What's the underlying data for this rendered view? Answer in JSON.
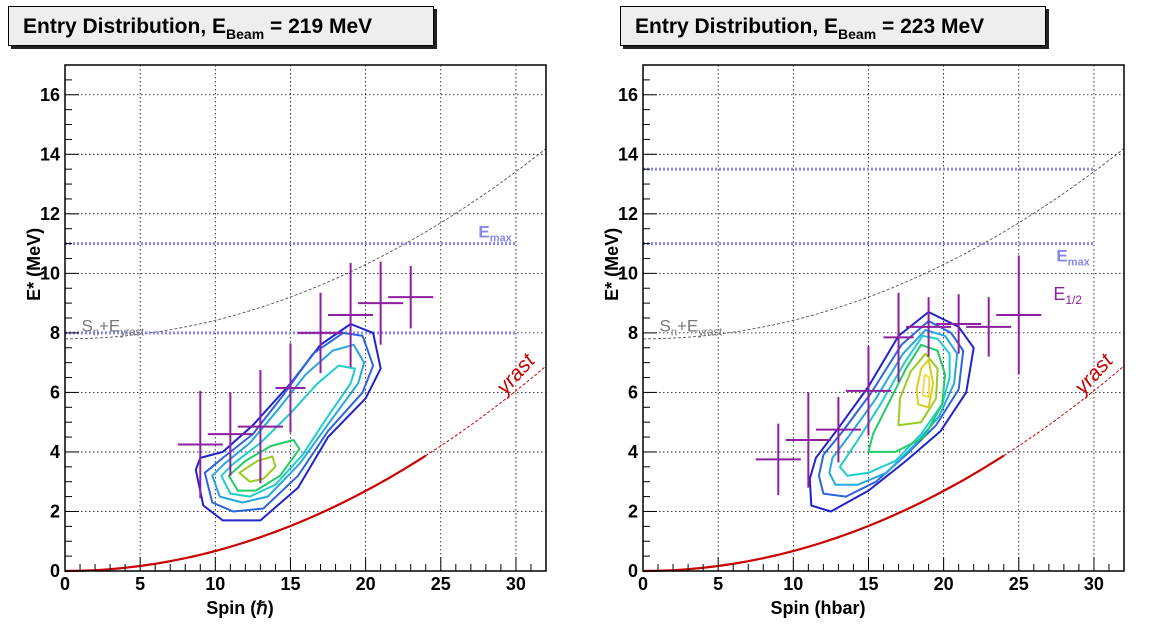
{
  "chart_data": [
    {
      "type": "contour",
      "title_prefix": "Entry Distribution, E",
      "title_sub": "Beam",
      "title_suffix": " = 219 MeV",
      "xlabel": "Spin (ℏ)",
      "ylabel": "E* (MeV)",
      "xlim": [
        0,
        32
      ],
      "ylim": [
        0,
        17
      ],
      "xticks": [
        "0",
        "5",
        "10",
        "15",
        "20",
        "25",
        "30"
      ],
      "yticks": [
        "0",
        "2",
        "4",
        "6",
        "8",
        "10",
        "12",
        "14",
        "16"
      ],
      "grid": true,
      "emax_label": "E",
      "emax_sub": "max",
      "sn_label": "S",
      "sn_sub1": "n",
      "sn_mid": "+E",
      "sn_sub2": "yrast",
      "yrast_label": "yrast",
      "half_label": "",
      "half_sub": "",
      "emax_lines": [
        8.0,
        11.0
      ],
      "entry_points": [
        {
          "x": 9,
          "y": 4.25,
          "xerr": 1.5,
          "yerr": 1.8
        },
        {
          "x": 11,
          "y": 4.6,
          "xerr": 1.5,
          "yerr": 1.4
        },
        {
          "x": 13,
          "y": 4.85,
          "xerr": 1.5,
          "yerr": 1.9
        },
        {
          "x": 15,
          "y": 6.15,
          "xerr": 1.0,
          "yerr": 1.5
        },
        {
          "x": 17,
          "y": 8.0,
          "xerr": 1.5,
          "yerr": 1.35
        },
        {
          "x": 19,
          "y": 8.6,
          "xerr": 1.5,
          "yerr": 1.75
        },
        {
          "x": 21,
          "y": 9.0,
          "xerr": 1.5,
          "yerr": 1.4
        },
        {
          "x": 23,
          "y": 9.2,
          "xerr": 1.5,
          "yerr": 1.05
        }
      ],
      "contours": [
        {
          "level": 1,
          "color": "#2222cc",
          "points": [
            [
              8.7,
              3.4
            ],
            [
              9.2,
              2.2
            ],
            [
              10.5,
              1.7
            ],
            [
              13.0,
              1.7
            ],
            [
              15.5,
              2.8
            ],
            [
              17.5,
              4.5
            ],
            [
              20.0,
              5.8
            ],
            [
              21.0,
              6.8
            ],
            [
              20.5,
              8.0
            ],
            [
              19.0,
              8.3
            ],
            [
              17.0,
              7.6
            ],
            [
              15.0,
              6.3
            ],
            [
              12.5,
              4.9
            ],
            [
              10.5,
              4.0
            ],
            [
              9.0,
              3.8
            ]
          ]
        },
        {
          "level": 2,
          "color": "#2d66dd",
          "points": [
            [
              9.3,
              3.3
            ],
            [
              9.8,
              2.3
            ],
            [
              11.2,
              2.0
            ],
            [
              13.2,
              2.1
            ],
            [
              15.5,
              3.2
            ],
            [
              17.5,
              4.7
            ],
            [
              19.8,
              6.0
            ],
            [
              20.5,
              6.9
            ],
            [
              19.8,
              7.9
            ],
            [
              18.5,
              8.0
            ],
            [
              16.5,
              7.3
            ],
            [
              14.5,
              5.9
            ],
            [
              12.5,
              4.6
            ],
            [
              10.5,
              3.8
            ]
          ]
        },
        {
          "level": 3,
          "color": "#25a8dd",
          "points": [
            [
              9.8,
              3.2
            ],
            [
              10.3,
              2.5
            ],
            [
              11.8,
              2.3
            ],
            [
              13.5,
              2.5
            ],
            [
              15.6,
              3.6
            ],
            [
              17.6,
              5.0
            ],
            [
              19.5,
              6.3
            ],
            [
              19.9,
              7.0
            ],
            [
              19.2,
              7.6
            ],
            [
              17.8,
              7.4
            ],
            [
              16.0,
              6.6
            ],
            [
              14.3,
              5.5
            ],
            [
              12.3,
              4.3
            ],
            [
              10.6,
              3.6
            ]
          ]
        },
        {
          "level": 4,
          "color": "#20cccc",
          "points": [
            [
              10.4,
              3.2
            ],
            [
              11.0,
              2.6
            ],
            [
              12.3,
              2.5
            ],
            [
              14.0,
              2.9
            ],
            [
              15.8,
              3.9
            ],
            [
              17.5,
              5.2
            ],
            [
              19.0,
              6.3
            ],
            [
              19.3,
              6.8
            ],
            [
              18.2,
              6.9
            ],
            [
              16.8,
              6.3
            ],
            [
              15.0,
              5.3
            ],
            [
              13.0,
              4.3
            ],
            [
              11.2,
              3.6
            ]
          ]
        },
        {
          "level": 5,
          "color": "#22cc66",
          "points": [
            [
              10.9,
              3.2
            ],
            [
              11.5,
              2.7
            ],
            [
              12.7,
              2.7
            ],
            [
              14.3,
              3.2
            ],
            [
              15.6,
              4.1
            ],
            [
              15.2,
              4.4
            ],
            [
              13.7,
              4.2
            ],
            [
              12.0,
              3.7
            ]
          ]
        },
        {
          "level": 6,
          "color": "#99cc22",
          "points": [
            [
              11.6,
              3.3
            ],
            [
              12.3,
              3.0
            ],
            [
              13.2,
              3.1
            ],
            [
              14.0,
              3.5
            ],
            [
              13.8,
              3.85
            ],
            [
              12.8,
              3.7
            ]
          ]
        }
      ]
    },
    {
      "type": "contour",
      "title_prefix": "Entry Distribution, E",
      "title_sub": "Beam",
      "title_suffix": " = 223 MeV",
      "xlabel": "Spin (hbar)",
      "ylabel": "E* (MeV)",
      "xlim": [
        0,
        32
      ],
      "ylim": [
        0,
        17
      ],
      "xticks": [
        "0",
        "5",
        "10",
        "15",
        "20",
        "25",
        "30"
      ],
      "yticks": [
        "0",
        "2",
        "4",
        "6",
        "8",
        "10",
        "12",
        "14",
        "16"
      ],
      "grid": true,
      "emax_label": "E",
      "emax_sub": "max",
      "sn_label": "S",
      "sn_sub1": "n",
      "sn_mid": "+E",
      "sn_sub2": "yrast",
      "yrast_label": "yrast",
      "half_label": "E",
      "half_sub": "1/2",
      "emax_lines": [
        11.0,
        13.5
      ],
      "entry_points": [
        {
          "x": 9,
          "y": 3.75,
          "xerr": 1.5,
          "yerr": 1.2
        },
        {
          "x": 11,
          "y": 4.4,
          "xerr": 1.5,
          "yerr": 1.6
        },
        {
          "x": 13,
          "y": 4.75,
          "xerr": 1.5,
          "yerr": 1.1
        },
        {
          "x": 15,
          "y": 6.05,
          "xerr": 1.5,
          "yerr": 1.5
        },
        {
          "x": 17,
          "y": 7.85,
          "xerr": 1.0,
          "yerr": 1.5
        },
        {
          "x": 19,
          "y": 8.2,
          "xerr": 1.5,
          "yerr": 1.0
        },
        {
          "x": 21,
          "y": 8.3,
          "xerr": 1.5,
          "yerr": 1.0
        },
        {
          "x": 23,
          "y": 8.2,
          "xerr": 1.5,
          "yerr": 1.0
        },
        {
          "x": 25,
          "y": 8.6,
          "xerr": 1.5,
          "yerr": 2.0
        }
      ],
      "contours": [
        {
          "level": 1,
          "color": "#2222cc",
          "points": [
            [
              11.1,
              3.1
            ],
            [
              11.2,
              2.2
            ],
            [
              12.5,
              2.0
            ],
            [
              15.0,
              2.7
            ],
            [
              17.5,
              3.7
            ],
            [
              19.8,
              4.7
            ],
            [
              21.5,
              6.0
            ],
            [
              22.0,
              7.5
            ],
            [
              21.0,
              8.2
            ],
            [
              19.0,
              8.7
            ],
            [
              17.0,
              7.9
            ],
            [
              15.0,
              6.2
            ],
            [
              13.0,
              4.8
            ],
            [
              11.5,
              3.8
            ]
          ]
        },
        {
          "level": 2,
          "color": "#2d66dd",
          "points": [
            [
              11.7,
              3.2
            ],
            [
              12.0,
              2.6
            ],
            [
              13.5,
              2.5
            ],
            [
              15.5,
              3.0
            ],
            [
              17.5,
              3.9
            ],
            [
              19.5,
              4.9
            ],
            [
              21.0,
              6.1
            ],
            [
              21.3,
              7.4
            ],
            [
              20.5,
              8.0
            ],
            [
              19.0,
              8.4
            ],
            [
              17.2,
              7.6
            ],
            [
              15.2,
              6.0
            ],
            [
              13.3,
              4.7
            ],
            [
              12.0,
              3.9
            ]
          ]
        },
        {
          "level": 3,
          "color": "#25a8dd",
          "points": [
            [
              12.4,
              3.3
            ],
            [
              12.8,
              2.9
            ],
            [
              14.3,
              2.9
            ],
            [
              16.2,
              3.3
            ],
            [
              18.0,
              4.2
            ],
            [
              19.7,
              5.2
            ],
            [
              20.7,
              6.3
            ],
            [
              20.9,
              7.3
            ],
            [
              20.1,
              7.9
            ],
            [
              18.8,
              8.1
            ],
            [
              17.3,
              7.3
            ],
            [
              15.5,
              5.8
            ],
            [
              13.8,
              4.6
            ],
            [
              12.6,
              3.8
            ]
          ]
        },
        {
          "level": 4,
          "color": "#20cccc",
          "points": [
            [
              13.1,
              3.5
            ],
            [
              13.6,
              3.2
            ],
            [
              15.0,
              3.3
            ],
            [
              16.8,
              3.7
            ],
            [
              18.5,
              4.6
            ],
            [
              19.9,
              5.6
            ],
            [
              20.4,
              6.5
            ],
            [
              20.4,
              7.3
            ],
            [
              19.6,
              7.8
            ],
            [
              18.6,
              7.9
            ],
            [
              17.4,
              7.0
            ],
            [
              15.8,
              5.6
            ],
            [
              14.3,
              4.4
            ]
          ]
        },
        {
          "level": 5,
          "color": "#22cc66",
          "points": [
            [
              15.0,
              4.0
            ],
            [
              16.8,
              4.0
            ],
            [
              18.7,
              4.5
            ],
            [
              19.9,
              5.6
            ],
            [
              20.1,
              6.6
            ],
            [
              19.6,
              7.4
            ],
            [
              18.5,
              7.6
            ],
            [
              17.5,
              6.8
            ],
            [
              16.3,
              5.6
            ],
            [
              15.3,
              4.6
            ]
          ]
        },
        {
          "level": 6,
          "color": "#99cc22",
          "points": [
            [
              17.0,
              4.9
            ],
            [
              18.5,
              5.0
            ],
            [
              19.5,
              5.8
            ],
            [
              19.6,
              6.8
            ],
            [
              18.8,
              7.3
            ],
            [
              17.8,
              6.7
            ],
            [
              17.1,
              5.8
            ]
          ]
        },
        {
          "level": 7,
          "color": "#ddcc22",
          "points": [
            [
              18.3,
              5.6
            ],
            [
              19.0,
              5.5
            ],
            [
              19.3,
              6.3
            ],
            [
              19.0,
              7.1
            ],
            [
              18.5,
              6.8
            ],
            [
              18.2,
              6.1
            ]
          ]
        },
        {
          "level": 8,
          "color": "#f0dd55",
          "points": [
            [
              18.6,
              5.9
            ],
            [
              19.0,
              5.85
            ],
            [
              19.05,
              6.5
            ],
            [
              18.75,
              6.6
            ]
          ]
        }
      ]
    }
  ]
}
